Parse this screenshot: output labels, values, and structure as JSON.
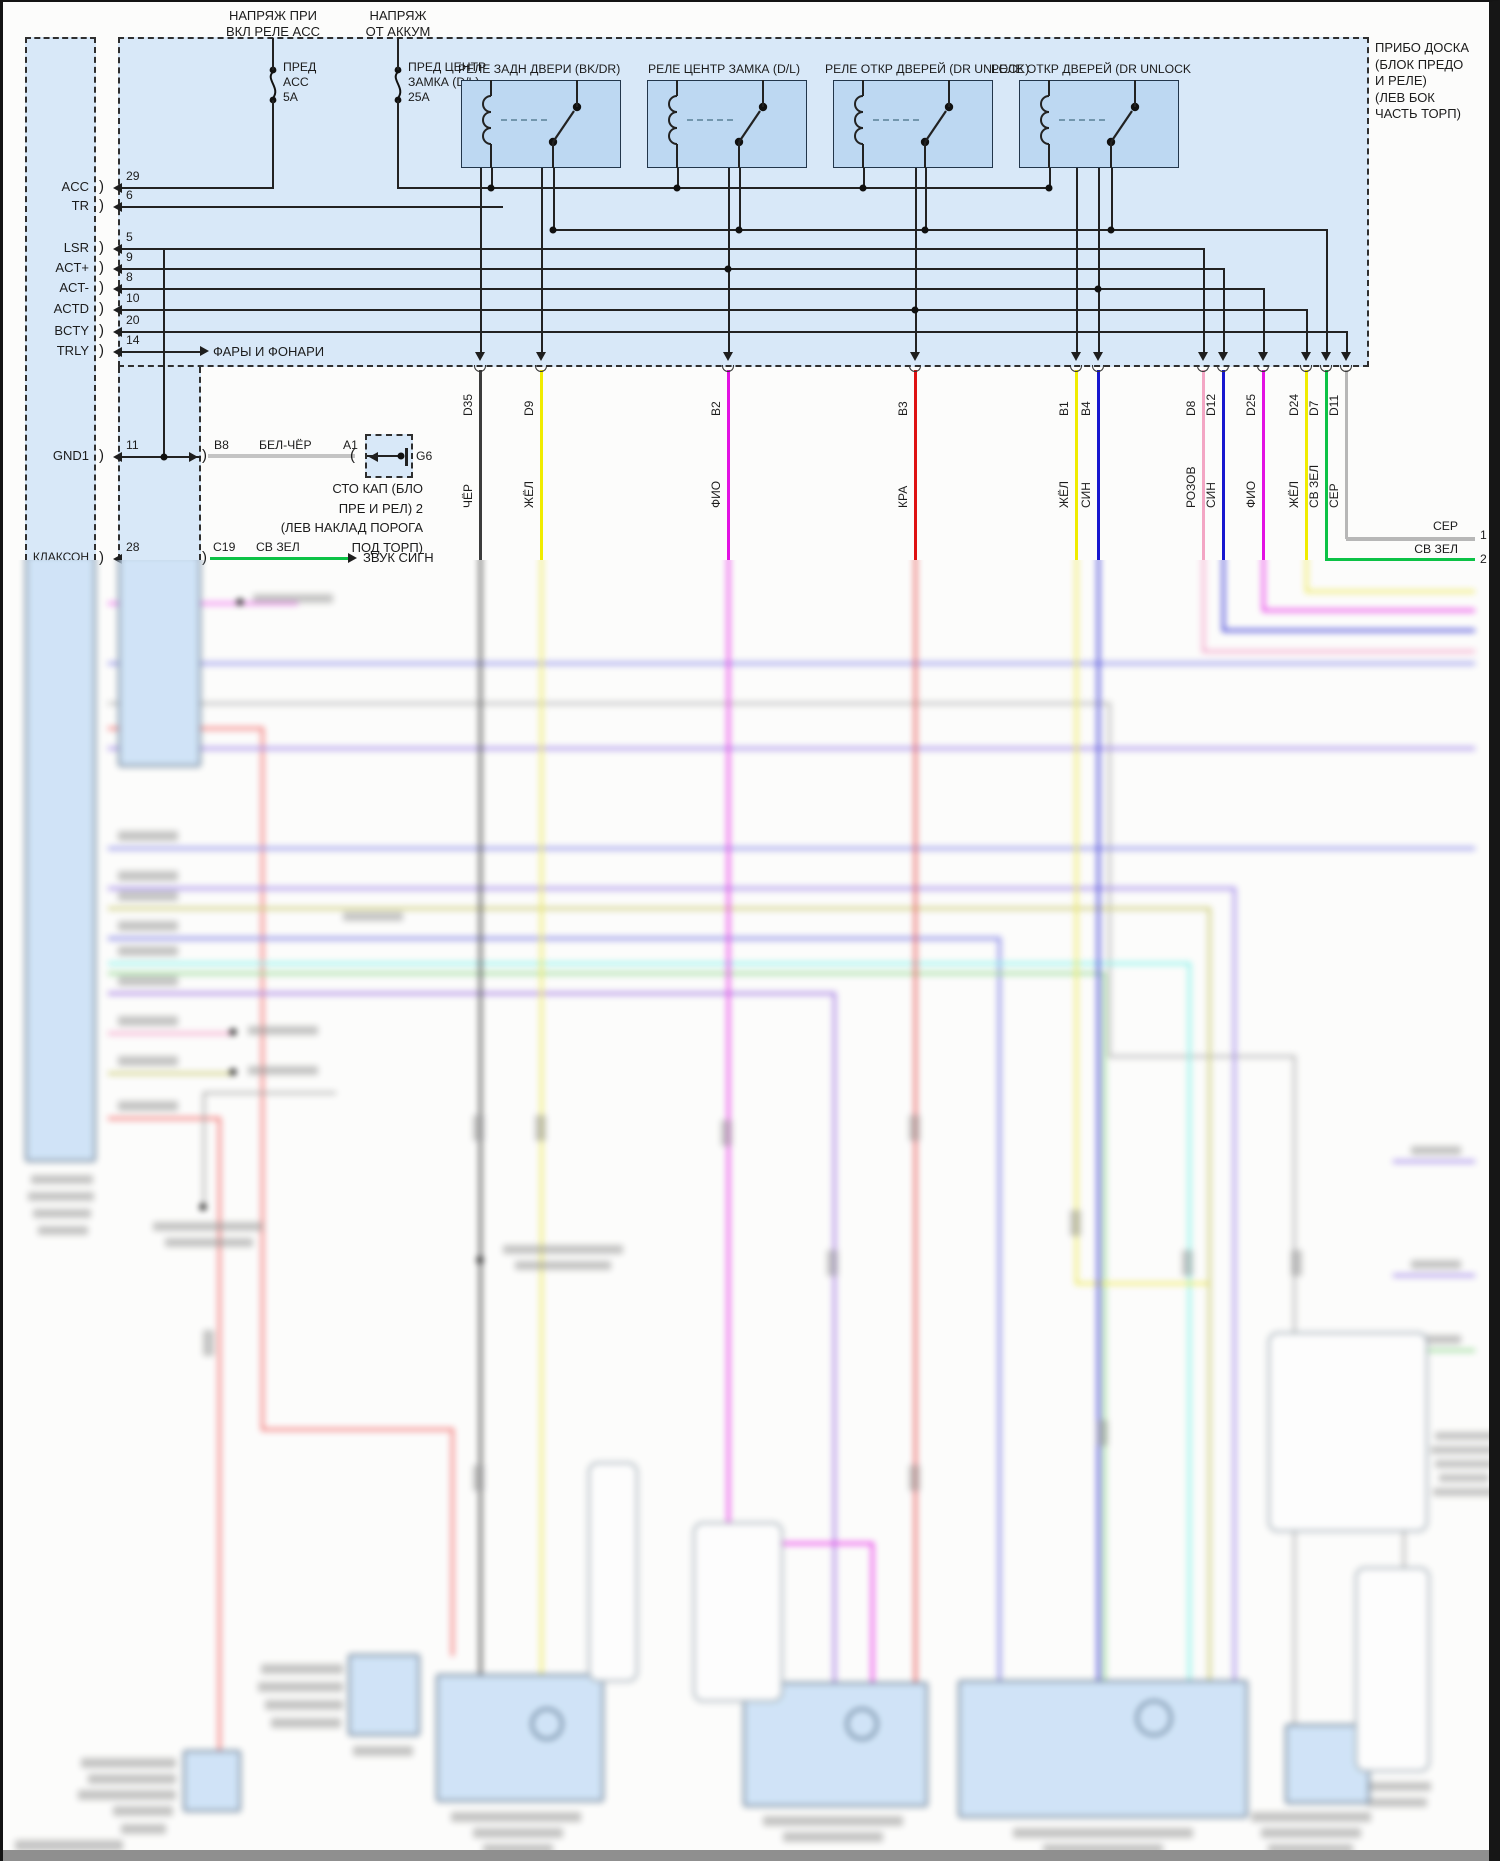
{
  "page": {
    "top_note1": [
      "НАПРЯЖ ПРИ",
      "ВКЛ РЕЛЕ ACC"
    ],
    "top_note2": [
      "НАПРЯЖ",
      "ОТ АККУМ"
    ],
    "fuse1": [
      "ПРЕД",
      "ACC",
      "5A"
    ],
    "fuse2": [
      "ПРЕД ЦЕНТР",
      "ЗАМКА (D/L)",
      "25A"
    ],
    "relays": [
      {
        "label": "РЕЛЕ ЗАДН ДВЕРИ (BK/DR)"
      },
      {
        "label": "РЕЛЕ ЦЕНТР ЗАМКА (D/L)"
      },
      {
        "label": "РЕЛЕ ОТКР ДВЕРЕЙ (DR UNLOCK)"
      },
      {
        "label": "РЕЛЕ ОТКР ДВЕРЕЙ (DR UNLOCK"
      }
    ],
    "panel_note": [
      "ПРИБО ДОСКА",
      "(БЛОК ПРЕДО",
      "И РЕЛЕ)",
      "(ЛЕВ БОК",
      "ЧАСТЬ ТОРП)"
    ],
    "pins": [
      {
        "name": "ACC",
        "num": "29"
      },
      {
        "name": "TR",
        "num": "6"
      },
      {
        "name": "LSR",
        "num": "5"
      },
      {
        "name": "ACT+",
        "num": "9"
      },
      {
        "name": "ACT-",
        "num": "8"
      },
      {
        "name": "ACTD",
        "num": "10"
      },
      {
        "name": "BCTY",
        "num": "20"
      },
      {
        "name": "TRLY",
        "num": "14"
      },
      {
        "name": "GND1",
        "num": "11"
      },
      {
        "name": "КЛАКСОН",
        "num": "28"
      }
    ],
    "headlights": "ФАРЫ И ФОНАРИ",
    "horn_dest": "ЗВУК СИГН",
    "gnd": {
      "pin_a": "B8",
      "wire": "БЕЛ-ЧЁР",
      "pin_b": "A1",
      "ground": "G6"
    },
    "gnd_note": [
      "СТО КАП (БЛО",
      "ПРЕ И РЕЛ) 2",
      "(ЛЕВ НАКЛАД ПОРОГА",
      "ПОД ТОРП)"
    ],
    "horn": {
      "pin": "C19",
      "wire": "СВ ЗЕЛ"
    },
    "wires": [
      {
        "code": "D35",
        "color": "ЧЁР",
        "hex": "#3c3c3c"
      },
      {
        "code": "D9",
        "color": "ЖЁЛ",
        "hex": "#f0ec00"
      },
      {
        "code": "B2",
        "color": "ФИО",
        "hex": "#e312e3"
      },
      {
        "code": "B3",
        "color": "КРА",
        "hex": "#de1212"
      },
      {
        "code": "B1",
        "color": "ЖЁЛ",
        "hex": "#f0ec00"
      },
      {
        "code": "B4",
        "color": "СИН",
        "hex": "#1717cf"
      },
      {
        "code": "D8",
        "color": "РОЗОВ",
        "hex": "#f3a6c4"
      },
      {
        "code": "D12",
        "color": "СИН",
        "hex": "#1717cf"
      },
      {
        "code": "D25",
        "color": "ФИО",
        "hex": "#e312e3"
      },
      {
        "code": "D24",
        "color": "ЖЁЛ",
        "hex": "#f0ec00"
      },
      {
        "code": "D7",
        "color": "СВ ЗЕЛ",
        "hex": "#0cc246"
      },
      {
        "code": "D11",
        "color": "СЕР",
        "hex": "#b7b7b7"
      }
    ],
    "right_terminals": [
      {
        "label": "СЕР",
        "num": "1"
      },
      {
        "label": "СВ ЗЕЛ",
        "num": "2"
      }
    ]
  }
}
